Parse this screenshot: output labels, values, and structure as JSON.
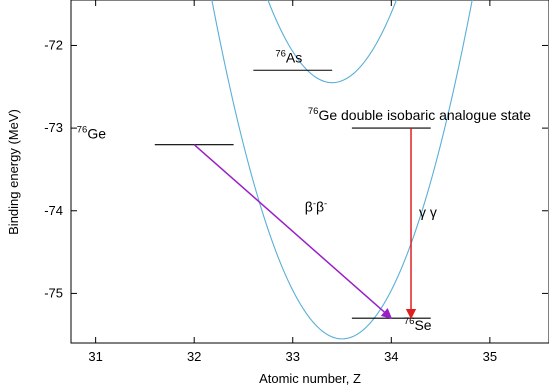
{
  "chart_data": {
    "type": "line",
    "xlabel": "Atomic number, Z",
    "ylabel": "Binding energy (MeV)",
    "xlim": [
      30.75,
      35.6
    ],
    "ylim": [
      -75.6,
      -71.45
    ],
    "x_ticks": [
      "31",
      "32",
      "33",
      "34",
      "35"
    ],
    "y_ticks": [
      "-72",
      "-73",
      "-74",
      "-75"
    ],
    "grid": false,
    "series": [
      {
        "kind": "parabola",
        "parity": "even-even",
        "vertex_z": 33.5,
        "vertex_energy": -75.55,
        "curvature": 2.35,
        "color": "#5aafd8"
      },
      {
        "kind": "parabola",
        "parity": "odd-odd",
        "vertex_z": 33.4,
        "vertex_energy": -72.45,
        "curvature": 2.35,
        "color": "#5aafd8"
      }
    ],
    "levels": [
      {
        "mass": "76",
        "element": "Ge",
        "z": 32,
        "z_from": 31.6,
        "z_to": 32.4,
        "energy": -73.2
      },
      {
        "mass": "76",
        "element": "As",
        "z": 33,
        "z_from": 32.6,
        "z_to": 33.4,
        "energy": -72.3
      },
      {
        "mass": "76",
        "element": "Se",
        "z": 34,
        "z_from": 33.6,
        "z_to": 34.4,
        "energy": -75.3
      },
      {
        "mass": "76",
        "element": "Ge double isobaric analogue state",
        "z": 34.2,
        "z_from": 33.6,
        "z_to": 34.4,
        "energy": -73.0
      }
    ],
    "transitions": [
      {
        "label_base": "β",
        "label_sup": "-",
        "label_repeat": 2,
        "from": [
          32,
          -73.2
        ],
        "to": [
          34,
          -75.3
        ],
        "color": "#9a1fc8"
      },
      {
        "label": "γ γ",
        "from": [
          34.2,
          -73.0
        ],
        "to": [
          34.2,
          -75.3
        ],
        "color": "#e02020"
      }
    ]
  }
}
